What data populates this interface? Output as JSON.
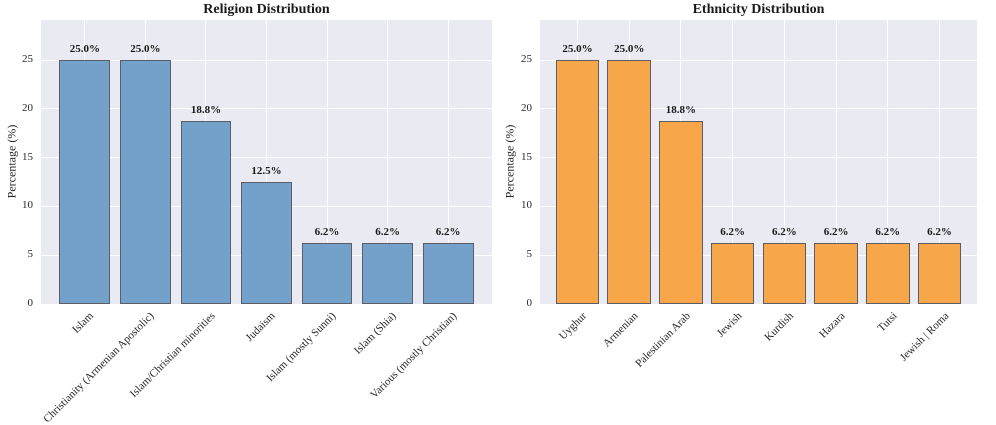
{
  "figure": {
    "background": "#ffffff",
    "plot_background": "#eaeaf2",
    "grid_color": "#ffffff",
    "bar_edge_color": "#5d5d66",
    "text_color": "#1a1a1a"
  },
  "chart_data": [
    {
      "type": "bar",
      "title": "Religion Distribution",
      "xlabel": "",
      "ylabel": "Percentage (%)",
      "categories": [
        "Islam",
        "Christianity (Armenian Apostolic)",
        "Islam/Christian minorities",
        "Judaism",
        "Islam (mostly Sunni)",
        "Islam (Shia)",
        "Various (mostly Christian)"
      ],
      "values": [
        25.0,
        25.0,
        18.8,
        12.5,
        6.2,
        6.2,
        6.2
      ],
      "labels": [
        "25.0%",
        "25.0%",
        "18.8%",
        "12.5%",
        "6.2%",
        "6.2%",
        "6.2%"
      ],
      "bar_color": "#74a1c9",
      "ylim": [
        0,
        29.1
      ],
      "yticks": [
        0,
        5,
        10,
        15,
        20,
        25
      ],
      "ytick_labels": [
        "0",
        "5",
        "10",
        "15",
        "20",
        "25"
      ],
      "grid": true,
      "legend_position": "none",
      "xtick_rotation_deg": 45
    },
    {
      "type": "bar",
      "title": "Ethnicity Distribution",
      "xlabel": "",
      "ylabel": "Percentage (%)",
      "categories": [
        "Uyghur",
        "Armenian",
        "Palestinian Arab",
        "Jewish",
        "Kurdish",
        "Hazara",
        "Tutsi",
        "Jewish | Roma"
      ],
      "values": [
        25.0,
        25.0,
        18.8,
        6.2,
        6.2,
        6.2,
        6.2,
        6.2
      ],
      "labels": [
        "25.0%",
        "25.0%",
        "18.8%",
        "6.2%",
        "6.2%",
        "6.2%",
        "6.2%",
        "6.2%"
      ],
      "bar_color": "#f8a64a",
      "ylim": [
        0,
        29.1
      ],
      "yticks": [
        0,
        5,
        10,
        15,
        20,
        25
      ],
      "ytick_labels": [
        "0",
        "5",
        "10",
        "15",
        "20",
        "25"
      ],
      "grid": true,
      "legend_position": "none",
      "xtick_rotation_deg": 45
    }
  ]
}
